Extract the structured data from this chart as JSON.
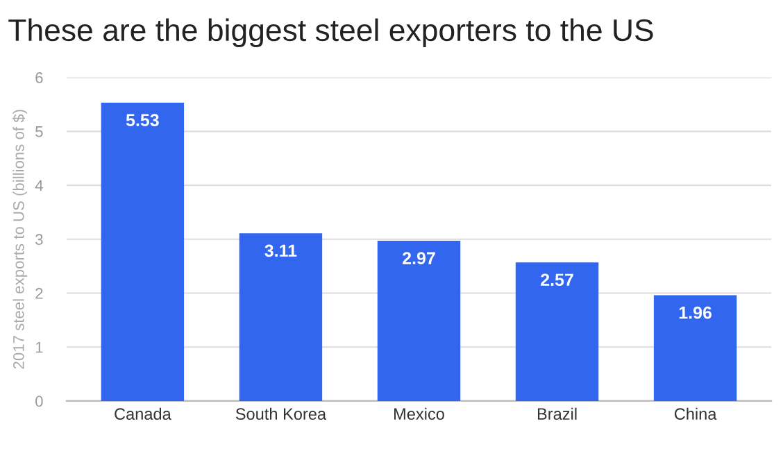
{
  "chart_data": {
    "type": "bar",
    "title": "These are the biggest steel exporters to the US",
    "ylabel": "2017 steel exports to US (billions of $)",
    "categories": [
      "Canada",
      "South Korea",
      "Mexico",
      "Brazil",
      "China"
    ],
    "values": [
      5.53,
      3.11,
      2.97,
      2.57,
      1.96
    ],
    "color": "#3366ee",
    "ylim": [
      0,
      6
    ],
    "yticks": [
      0,
      1,
      2,
      3,
      4,
      5,
      6
    ],
    "grid": "y",
    "data_labels": true
  }
}
